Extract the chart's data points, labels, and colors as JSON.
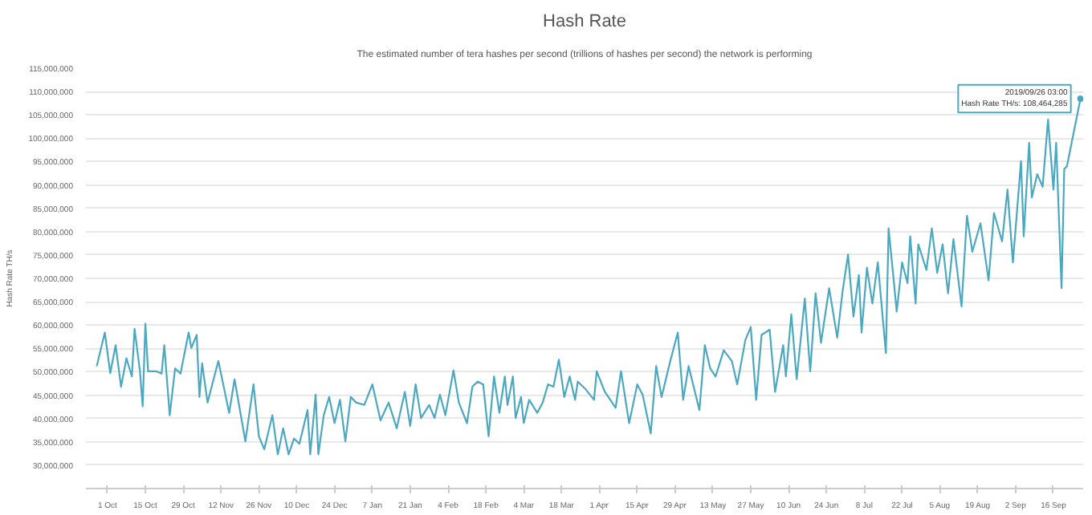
{
  "chart_data": {
    "type": "line",
    "title": "Hash Rate",
    "subtitle": "The estimated number of tera hashes per second (trillions of hashes per second) the network is performing",
    "ylabel": "Hash Rate TH/s",
    "x": [
      "2018-09-27",
      "2018-09-30",
      "2018-10-02",
      "2018-10-04",
      "2018-10-06",
      "2018-10-08",
      "2018-10-10",
      "2018-10-11",
      "2018-10-13",
      "2018-10-14",
      "2018-10-15",
      "2018-10-16",
      "2018-10-19",
      "2018-10-21",
      "2018-10-22",
      "2018-10-24",
      "2018-10-26",
      "2018-10-28",
      "2018-10-31",
      "2018-11-01",
      "2018-11-03",
      "2018-11-04",
      "2018-11-05",
      "2018-11-07",
      "2018-11-11",
      "2018-11-15",
      "2018-11-17",
      "2018-11-21",
      "2018-11-24",
      "2018-11-26",
      "2018-11-28",
      "2018-12-01",
      "2018-12-03",
      "2018-12-05",
      "2018-12-07",
      "2018-12-09",
      "2018-12-11",
      "2018-12-14",
      "2018-12-15",
      "2018-12-17",
      "2018-12-18",
      "2018-12-20",
      "2018-12-22",
      "2018-12-24",
      "2018-12-26",
      "2018-12-28",
      "2018-12-30",
      "2019-01-01",
      "2019-01-04",
      "2019-01-07",
      "2019-01-10",
      "2019-01-13",
      "2019-01-16",
      "2019-01-19",
      "2019-01-21",
      "2019-01-23",
      "2019-01-25",
      "2019-01-28",
      "2019-01-30",
      "2019-02-01",
      "2019-02-03",
      "2019-02-06",
      "2019-02-08",
      "2019-02-11",
      "2019-02-13",
      "2019-02-15",
      "2019-02-17",
      "2019-02-19",
      "2019-02-21",
      "2019-02-23",
      "2019-02-25",
      "2019-02-26",
      "2019-02-28",
      "2019-03-01",
      "2019-03-03",
      "2019-03-04",
      "2019-03-06",
      "2019-03-09",
      "2019-03-11",
      "2019-03-13",
      "2019-03-15",
      "2019-03-17",
      "2019-03-19",
      "2019-03-21",
      "2019-03-23",
      "2019-03-24",
      "2019-03-27",
      "2019-03-30",
      "2019-03-31",
      "2019-04-03",
      "2019-04-07",
      "2019-04-09",
      "2019-04-12",
      "2019-04-15",
      "2019-04-17",
      "2019-04-20",
      "2019-04-22",
      "2019-04-24",
      "2019-04-27",
      "2019-04-30",
      "2019-05-02",
      "2019-05-04",
      "2019-05-08",
      "2019-05-10",
      "2019-05-12",
      "2019-05-14",
      "2019-05-17",
      "2019-05-20",
      "2019-05-22",
      "2019-05-25",
      "2019-05-27",
      "2019-05-29",
      "2019-05-31",
      "2019-06-03",
      "2019-06-05",
      "2019-06-08",
      "2019-06-09",
      "2019-06-11",
      "2019-06-13",
      "2019-06-16",
      "2019-06-18",
      "2019-06-20",
      "2019-06-22",
      "2019-06-25",
      "2019-06-28",
      "2019-06-30",
      "2019-07-02",
      "2019-07-04",
      "2019-07-06",
      "2019-07-07",
      "2019-07-09",
      "2019-07-11",
      "2019-07-13",
      "2019-07-16",
      "2019-07-17",
      "2019-07-19",
      "2019-07-20",
      "2019-07-22",
      "2019-07-24",
      "2019-07-25",
      "2019-07-27",
      "2019-07-28",
      "2019-07-31",
      "2019-08-02",
      "2019-08-04",
      "2019-08-06",
      "2019-08-08",
      "2019-08-10",
      "2019-08-13",
      "2019-08-15",
      "2019-08-17",
      "2019-08-20",
      "2019-08-23",
      "2019-08-25",
      "2019-08-28",
      "2019-08-30",
      "2019-09-01",
      "2019-09-04",
      "2019-09-05",
      "2019-09-07",
      "2019-09-08",
      "2019-09-10",
      "2019-09-12",
      "2019-09-14",
      "2019-09-16",
      "2019-09-17",
      "2019-09-19",
      "2019-09-20",
      "2019-09-21",
      "2019-09-26"
    ],
    "series": [
      {
        "color": "#4aa8c0",
        "values": [
          51200000,
          58400000,
          49700000,
          55700000,
          46800000,
          52900000,
          49000000,
          59200000,
          50100000,
          42600000,
          60300000,
          50100000,
          50100000,
          49600000,
          55700000,
          40700000,
          50700000,
          49600000,
          58400000,
          55100000,
          57900000,
          44600000,
          51800000,
          43400000,
          52300000,
          41200000,
          48400000,
          35100000,
          47300000,
          36200000,
          33400000,
          40700000,
          32300000,
          37900000,
          32300000,
          35700000,
          34600000,
          41800000,
          32300000,
          45100000,
          32300000,
          40700000,
          44600000,
          39000000,
          44000000,
          35100000,
          44600000,
          43400000,
          42900000,
          47300000,
          39600000,
          43400000,
          37900000,
          45700000,
          38400000,
          47300000,
          40100000,
          42900000,
          40100000,
          45100000,
          40700000,
          50300000,
          43400000,
          39000000,
          46800000,
          47900000,
          47300000,
          36200000,
          49000000,
          41200000,
          49000000,
          42900000,
          49000000,
          40100000,
          44600000,
          39000000,
          44000000,
          41200000,
          43400000,
          47300000,
          46800000,
          52600000,
          44600000,
          49000000,
          44000000,
          47900000,
          46200000,
          44000000,
          50100000,
          45700000,
          42300000,
          50100000,
          39000000,
          47300000,
          45100000,
          36800000,
          51200000,
          44600000,
          51800000,
          58400000,
          44000000,
          51200000,
          41800000,
          55700000,
          50700000,
          49000000,
          54600000,
          52300000,
          47300000,
          56800000,
          59600000,
          44000000,
          57900000,
          59000000,
          45700000,
          55700000,
          49000000,
          62300000,
          48400000,
          65700000,
          50100000,
          66800000,
          56200000,
          67900000,
          57300000,
          67300000,
          75100000,
          61800000,
          70700000,
          58400000,
          72300000,
          64600000,
          73400000,
          54000000,
          80700000,
          69000000,
          62900000,
          73400000,
          69000000,
          79000000,
          64600000,
          77300000,
          71800000,
          80700000,
          71200000,
          77300000,
          66800000,
          78400000,
          64000000,
          83400000,
          75700000,
          81800000,
          69600000,
          84000000,
          77900000,
          89000000,
          73400000,
          95100000,
          79000000,
          99000000,
          87300000,
          92300000,
          89600000,
          104000000,
          89000000,
          99000000,
          67900000,
          93400000,
          94000000,
          108464285
        ]
      }
    ],
    "xlim": [
      "2018-09-23",
      "2019-09-27"
    ],
    "xticks": [
      {
        "value": "2018-10-01",
        "label": "1 Oct"
      },
      {
        "value": "2018-10-15",
        "label": "15 Oct"
      },
      {
        "value": "2018-10-29",
        "label": "29 Oct"
      },
      {
        "value": "2018-11-12",
        "label": "12 Nov"
      },
      {
        "value": "2018-11-26",
        "label": "26 Nov"
      },
      {
        "value": "2018-12-10",
        "label": "10 Dec"
      },
      {
        "value": "2018-12-24",
        "label": "24 Dec"
      },
      {
        "value": "2019-01-07",
        "label": "7 Jan"
      },
      {
        "value": "2019-01-21",
        "label": "21 Jan"
      },
      {
        "value": "2019-02-04",
        "label": "4 Feb"
      },
      {
        "value": "2019-02-18",
        "label": "18 Feb"
      },
      {
        "value": "2019-03-04",
        "label": "4 Mar"
      },
      {
        "value": "2019-03-18",
        "label": "18 Mar"
      },
      {
        "value": "2019-04-01",
        "label": "1 Apr"
      },
      {
        "value": "2019-04-15",
        "label": "15 Apr"
      },
      {
        "value": "2019-04-29",
        "label": "29 Apr"
      },
      {
        "value": "2019-05-13",
        "label": "13 May"
      },
      {
        "value": "2019-05-27",
        "label": "27 May"
      },
      {
        "value": "2019-06-10",
        "label": "10 Jun"
      },
      {
        "value": "2019-06-24",
        "label": "24 Jun"
      },
      {
        "value": "2019-07-08",
        "label": "8 Jul"
      },
      {
        "value": "2019-07-22",
        "label": "22 Jul"
      },
      {
        "value": "2019-08-05",
        "label": "5 Aug"
      },
      {
        "value": "2019-08-19",
        "label": "19 Aug"
      },
      {
        "value": "2019-09-02",
        "label": "2 Sep"
      },
      {
        "value": "2019-09-16",
        "label": "16 Sep"
      }
    ],
    "ylim": [
      25000000,
      115000000
    ],
    "yticks": [
      {
        "value": 30000000,
        "label": "30,000,000"
      },
      {
        "value": 35000000,
        "label": "35,000,000"
      },
      {
        "value": 40000000,
        "label": "40,000,000"
      },
      {
        "value": 45000000,
        "label": "45,000,000"
      },
      {
        "value": 50000000,
        "label": "50,000,000"
      },
      {
        "value": 55000000,
        "label": "55,000,000"
      },
      {
        "value": 60000000,
        "label": "60,000,000"
      },
      {
        "value": 65000000,
        "label": "65,000,000"
      },
      {
        "value": 70000000,
        "label": "70,000,000"
      },
      {
        "value": 75000000,
        "label": "75,000,000"
      },
      {
        "value": 80000000,
        "label": "80,000,000"
      },
      {
        "value": 85000000,
        "label": "85,000,000"
      },
      {
        "value": 90000000,
        "label": "90,000,000"
      },
      {
        "value": 95000000,
        "label": "95,000,000"
      },
      {
        "value": 100000000,
        "label": "100,000,000"
      },
      {
        "value": 105000000,
        "label": "105,000,000"
      },
      {
        "value": 110000000,
        "label": "110,000,000"
      },
      {
        "value": 115000000,
        "label": "115,000,000"
      }
    ],
    "grid": "y",
    "marker": "none",
    "line_style": "solid",
    "annotations": [
      {
        "text": "2019/09/26 03:00\nHash Rate TH/s: 108,464,285",
        "x": "2019-09-26",
        "y": 108464285
      }
    ]
  }
}
